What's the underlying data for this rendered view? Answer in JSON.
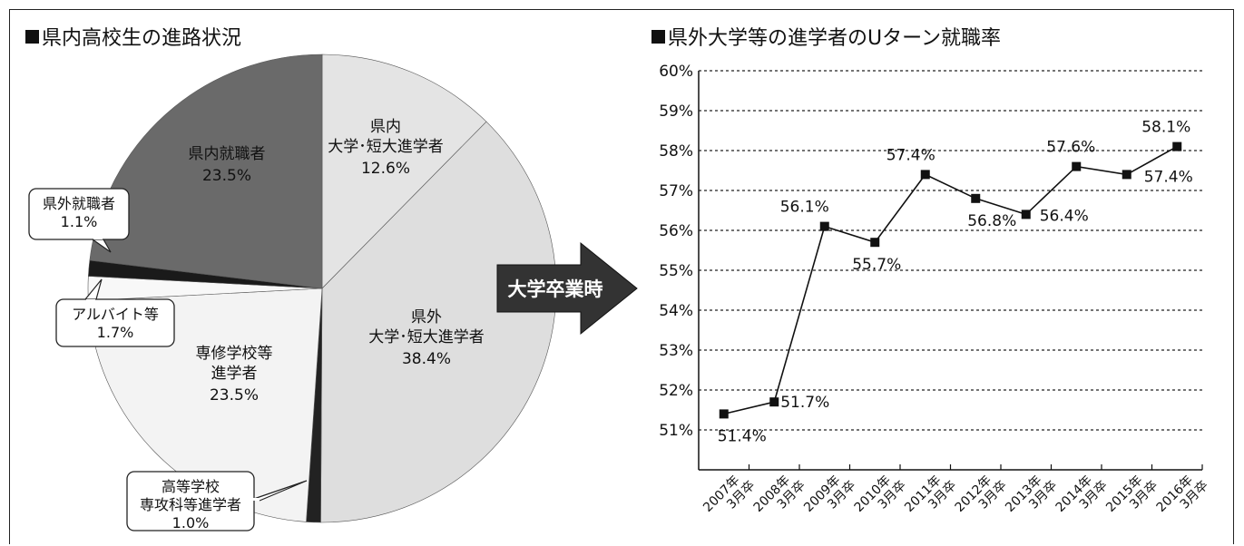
{
  "chart_data": [
    {
      "type": "pie",
      "title": "県内高校生の進路状況",
      "slices": [
        {
          "label_lines": [
            "県内",
            "大学･短大進学者"
          ],
          "value": 12.6,
          "value_text": "12.6%",
          "color": "#e4e4e4"
        },
        {
          "label_lines": [
            "県外",
            "大学･短大進学者"
          ],
          "value": 38.4,
          "value_text": "38.4%",
          "color": "#dedede"
        },
        {
          "label_lines": [
            "高等学校",
            "専攻科等進学者"
          ],
          "value": 1.0,
          "value_text": "1.0%",
          "color": "#222222"
        },
        {
          "label_lines": [
            "専修学校等",
            "進学者"
          ],
          "value": 23.5,
          "value_text": "23.5%",
          "color": "#f3f3f3"
        },
        {
          "label_lines": [
            "アルバイト等"
          ],
          "value": 1.7,
          "value_text": "1.7%",
          "color": "#f8f8f8"
        },
        {
          "label_lines": [
            "県外就職者"
          ],
          "value": 1.1,
          "value_text": "1.1%",
          "color": "#1a1a1a"
        },
        {
          "label_lines": [
            "県内就職者"
          ],
          "value": 23.5,
          "value_text": "23.5%",
          "color": "#6a6a6a"
        }
      ]
    },
    {
      "type": "line",
      "title": "県外大学等の進学者のUターン就職率",
      "categories": [
        [
          "2007年",
          "3月卒"
        ],
        [
          "2008年",
          "3月卒"
        ],
        [
          "2009年",
          "3月卒"
        ],
        [
          "2010年",
          "3月卒"
        ],
        [
          "2011年",
          "3月卒"
        ],
        [
          "2012年",
          "3月卒"
        ],
        [
          "2013年",
          "3月卒"
        ],
        [
          "2014年",
          "3月卒"
        ],
        [
          "2015年",
          "3月卒"
        ],
        [
          "2016年",
          "3月卒"
        ]
      ],
      "series": [
        {
          "values": [
            51.4,
            51.7,
            56.1,
            55.7,
            57.4,
            56.8,
            56.4,
            57.6,
            57.4,
            58.1
          ]
        }
      ],
      "value_labels": [
        "51.4%",
        "51.7%",
        "56.1%",
        "55.7%",
        "57.4%",
        "56.8%",
        "56.4%",
        "57.6%",
        "57.4%",
        "58.1%"
      ],
      "yticks": [
        "51%",
        "52%",
        "53%",
        "54%",
        "55%",
        "56%",
        "57%",
        "58%",
        "59%",
        "60%"
      ],
      "ylim": [
        51,
        60
      ],
      "grid": true
    }
  ],
  "arrow_label": "大学卒業時"
}
